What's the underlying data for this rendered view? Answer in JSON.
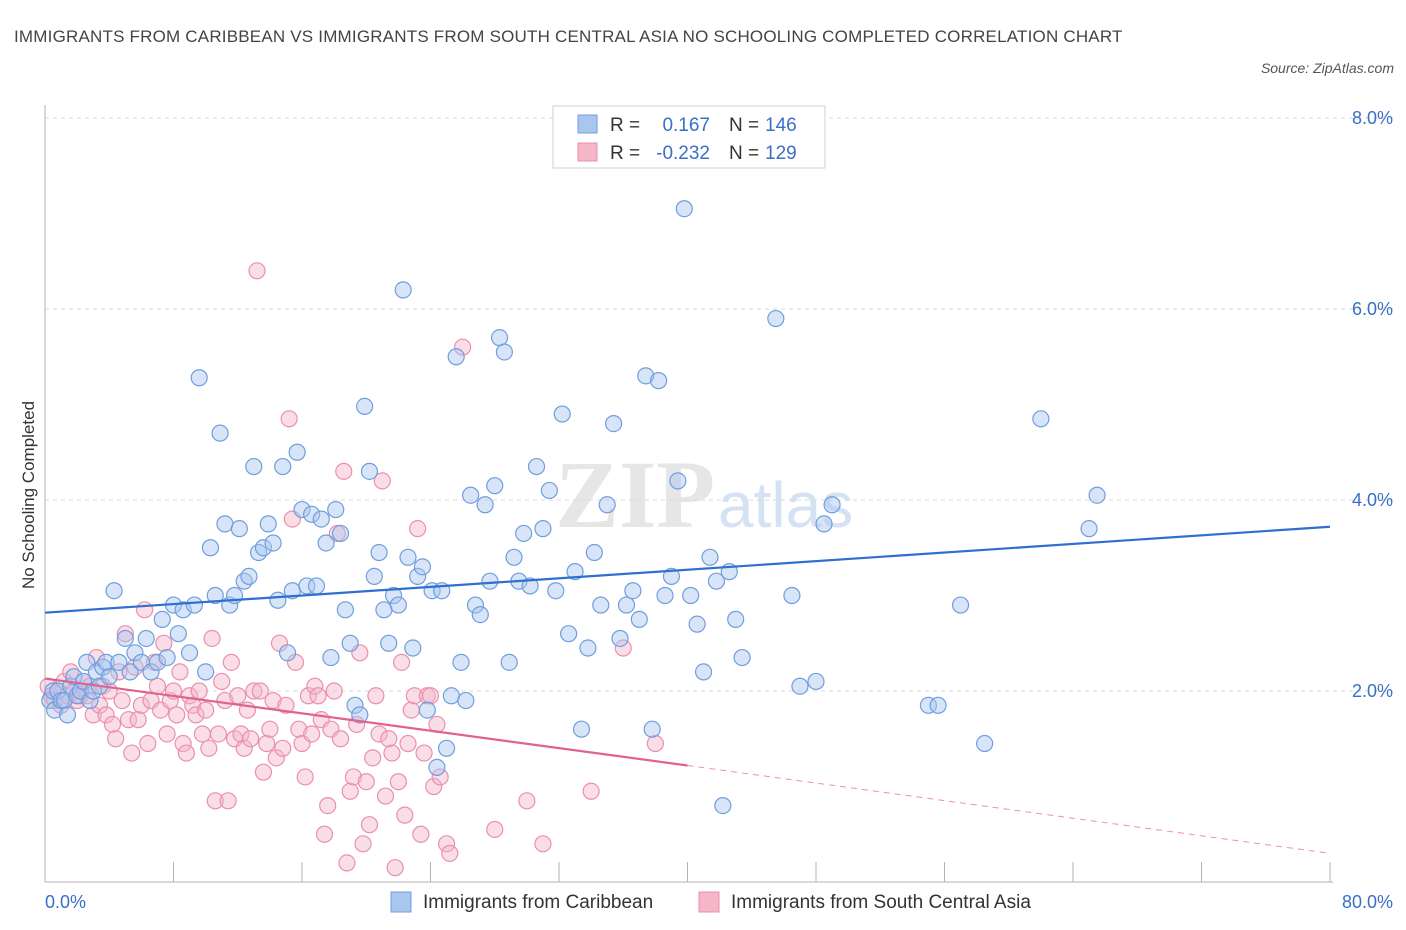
{
  "header": {
    "title": "IMMIGRANTS FROM CARIBBEAN VS IMMIGRANTS FROM SOUTH CENTRAL ASIA NO SCHOOLING COMPLETED CORRELATION CHART",
    "source": "Source: ZipAtlas.com"
  },
  "watermark": {
    "zip": "ZIP",
    "atlas": "atlas"
  },
  "legend_box": {
    "rows": [
      {
        "r_label": "R =",
        "r_value": "0.167",
        "n_label": "N =",
        "n_value": "146"
      },
      {
        "r_label": "R =",
        "r_value": "-0.232",
        "n_label": "N =",
        "n_value": "129"
      }
    ]
  },
  "colors": {
    "blue_fill": "#a9c6ef",
    "blue_stroke": "#6f9ede",
    "blue_line": "#2f6fcf",
    "pink_fill": "#f5b6c9",
    "pink_stroke": "#ec8fab",
    "pink_line": "#e0638d",
    "grid": "#d9d9d9",
    "tick_text": "#3a6fc6"
  },
  "chart_data": {
    "type": "scatter",
    "title": "IMMIGRANTS FROM CARIBBEAN VS IMMIGRANTS FROM SOUTH CENTRAL ASIA NO SCHOOLING COMPLETED CORRELATION CHART",
    "xlabel": "",
    "ylabel": "No Schooling Completed",
    "xlim": [
      0,
      80
    ],
    "ylim": [
      0,
      8.0
    ],
    "x_tick_labels": [
      "0.0%",
      "80.0%"
    ],
    "y_ticks": [
      2.0,
      4.0,
      6.0,
      8.0
    ],
    "y_tick_labels": [
      "2.0%",
      "4.0%",
      "6.0%",
      "8.0%"
    ],
    "grid": true,
    "series": [
      {
        "name": "Immigrants from Caribbean",
        "color": "#a9c6ef",
        "R": 0.167,
        "N": 146,
        "trend": {
          "x": [
            0,
            80
          ],
          "y": [
            2.82,
            3.72
          ]
        },
        "points": [
          [
            0.3,
            1.9
          ],
          [
            0.5,
            2.0
          ],
          [
            0.6,
            1.8
          ],
          [
            0.8,
            2.0
          ],
          [
            1.0,
            1.9
          ],
          [
            1.2,
            1.9
          ],
          [
            1.4,
            1.75
          ],
          [
            1.6,
            2.05
          ],
          [
            1.8,
            2.15
          ],
          [
            2.0,
            1.95
          ],
          [
            2.2,
            2.0
          ],
          [
            2.4,
            2.1
          ],
          [
            2.6,
            2.3
          ],
          [
            2.8,
            1.9
          ],
          [
            3.0,
            2.0
          ],
          [
            3.2,
            2.2
          ],
          [
            3.4,
            2.05
          ],
          [
            3.6,
            2.25
          ],
          [
            3.8,
            2.3
          ],
          [
            4.0,
            2.15
          ],
          [
            4.3,
            3.05
          ],
          [
            4.6,
            2.3
          ],
          [
            5.0,
            2.55
          ],
          [
            5.3,
            2.2
          ],
          [
            5.6,
            2.4
          ],
          [
            6.0,
            2.3
          ],
          [
            6.3,
            2.55
          ],
          [
            6.6,
            2.2
          ],
          [
            7.0,
            2.3
          ],
          [
            7.3,
            2.75
          ],
          [
            7.6,
            2.35
          ],
          [
            8.0,
            2.9
          ],
          [
            8.3,
            2.6
          ],
          [
            8.6,
            2.85
          ],
          [
            9.0,
            2.4
          ],
          [
            9.3,
            2.9
          ],
          [
            9.6,
            5.28
          ],
          [
            10.0,
            2.2
          ],
          [
            10.3,
            3.5
          ],
          [
            10.6,
            3.0
          ],
          [
            10.9,
            4.7
          ],
          [
            11.2,
            3.75
          ],
          [
            11.5,
            2.9
          ],
          [
            11.8,
            3.0
          ],
          [
            12.1,
            3.7
          ],
          [
            12.4,
            3.15
          ],
          [
            12.7,
            3.2
          ],
          [
            13.0,
            4.35
          ],
          [
            13.3,
            3.45
          ],
          [
            13.6,
            3.5
          ],
          [
            13.9,
            3.75
          ],
          [
            14.2,
            3.55
          ],
          [
            14.5,
            2.95
          ],
          [
            14.8,
            4.35
          ],
          [
            15.1,
            2.4
          ],
          [
            15.4,
            3.05
          ],
          [
            15.7,
            4.5
          ],
          [
            16.0,
            3.9
          ],
          [
            16.3,
            3.1
          ],
          [
            16.6,
            3.85
          ],
          [
            16.9,
            3.1
          ],
          [
            17.2,
            3.8
          ],
          [
            17.5,
            3.55
          ],
          [
            17.8,
            2.35
          ],
          [
            18.1,
            3.9
          ],
          [
            18.4,
            3.65
          ],
          [
            18.7,
            2.85
          ],
          [
            19.0,
            2.5
          ],
          [
            19.3,
            1.85
          ],
          [
            19.6,
            1.75
          ],
          [
            19.9,
            4.98
          ],
          [
            20.2,
            4.3
          ],
          [
            20.5,
            3.2
          ],
          [
            20.8,
            3.45
          ],
          [
            21.1,
            2.85
          ],
          [
            21.4,
            2.5
          ],
          [
            21.7,
            3.0
          ],
          [
            22.0,
            2.9
          ],
          [
            22.3,
            6.2
          ],
          [
            22.6,
            3.4
          ],
          [
            22.9,
            2.45
          ],
          [
            23.2,
            3.2
          ],
          [
            23.5,
            3.3
          ],
          [
            23.8,
            1.8
          ],
          [
            24.1,
            3.05
          ],
          [
            24.4,
            1.2
          ],
          [
            24.7,
            3.05
          ],
          [
            25.0,
            1.4
          ],
          [
            25.3,
            1.95
          ],
          [
            25.6,
            5.5
          ],
          [
            25.9,
            2.3
          ],
          [
            26.2,
            1.9
          ],
          [
            26.5,
            4.05
          ],
          [
            26.8,
            2.9
          ],
          [
            27.1,
            2.8
          ],
          [
            27.4,
            3.95
          ],
          [
            27.7,
            3.15
          ],
          [
            28.0,
            4.15
          ],
          [
            28.3,
            5.7
          ],
          [
            28.6,
            5.55
          ],
          [
            28.9,
            2.3
          ],
          [
            29.2,
            3.4
          ],
          [
            29.5,
            3.15
          ],
          [
            29.8,
            3.65
          ],
          [
            30.2,
            3.1
          ],
          [
            30.6,
            4.35
          ],
          [
            31.0,
            3.7
          ],
          [
            31.4,
            4.1
          ],
          [
            31.8,
            3.05
          ],
          [
            32.2,
            4.9
          ],
          [
            32.6,
            2.6
          ],
          [
            33.0,
            3.25
          ],
          [
            33.4,
            1.6
          ],
          [
            33.8,
            2.45
          ],
          [
            34.2,
            3.45
          ],
          [
            34.6,
            2.9
          ],
          [
            35.0,
            3.95
          ],
          [
            35.4,
            4.8
          ],
          [
            35.8,
            2.55
          ],
          [
            36.2,
            2.9
          ],
          [
            36.6,
            3.05
          ],
          [
            37.0,
            2.75
          ],
          [
            37.4,
            5.3
          ],
          [
            37.8,
            1.6
          ],
          [
            38.2,
            5.25
          ],
          [
            38.6,
            3.0
          ],
          [
            39.0,
            3.2
          ],
          [
            39.4,
            4.2
          ],
          [
            39.8,
            7.05
          ],
          [
            40.2,
            3.0
          ],
          [
            40.6,
            2.7
          ],
          [
            41.0,
            2.2
          ],
          [
            41.4,
            3.4
          ],
          [
            41.8,
            3.15
          ],
          [
            42.2,
            0.8
          ],
          [
            42.6,
            3.25
          ],
          [
            43.0,
            2.75
          ],
          [
            43.4,
            2.35
          ],
          [
            45.5,
            5.9
          ],
          [
            46.5,
            3.0
          ],
          [
            47.0,
            2.05
          ],
          [
            48.0,
            2.1
          ],
          [
            48.5,
            3.75
          ],
          [
            49.0,
            3.95
          ],
          [
            55.0,
            1.85
          ],
          [
            55.6,
            1.85
          ],
          [
            57.0,
            2.9
          ],
          [
            58.5,
            1.45
          ],
          [
            62.0,
            4.85
          ],
          [
            65.0,
            3.7
          ],
          [
            65.5,
            4.05
          ]
        ]
      },
      {
        "name": "Immigrants from South Central Asia",
        "color": "#f5b6c9",
        "R": -0.232,
        "N": 129,
        "trend": {
          "x": [
            0,
            40.0
          ],
          "y": [
            2.13,
            1.22
          ]
        },
        "trend_dashed": {
          "x": [
            40.0,
            80
          ],
          "y": [
            1.22,
            0.3
          ]
        },
        "points": [
          [
            0.2,
            2.05
          ],
          [
            0.4,
            1.95
          ],
          [
            0.6,
            1.9
          ],
          [
            0.8,
            2.0
          ],
          [
            1.0,
            1.85
          ],
          [
            1.2,
            2.1
          ],
          [
            1.4,
            1.95
          ],
          [
            1.6,
            2.2
          ],
          [
            1.8,
            2.0
          ],
          [
            2.0,
            1.9
          ],
          [
            2.2,
            1.95
          ],
          [
            2.4,
            2.1
          ],
          [
            2.6,
            1.95
          ],
          [
            2.8,
            2.05
          ],
          [
            3.0,
            1.75
          ],
          [
            3.2,
            2.35
          ],
          [
            3.4,
            1.85
          ],
          [
            3.6,
            2.05
          ],
          [
            3.8,
            1.75
          ],
          [
            4.0,
            2.0
          ],
          [
            4.2,
            1.65
          ],
          [
            4.4,
            1.5
          ],
          [
            4.6,
            2.2
          ],
          [
            4.8,
            1.9
          ],
          [
            5.0,
            2.6
          ],
          [
            5.2,
            1.7
          ],
          [
            5.4,
            1.35
          ],
          [
            5.6,
            2.25
          ],
          [
            5.8,
            1.7
          ],
          [
            6.0,
            1.85
          ],
          [
            6.2,
            2.85
          ],
          [
            6.4,
            1.45
          ],
          [
            6.6,
            1.9
          ],
          [
            6.8,
            2.3
          ],
          [
            7.0,
            2.05
          ],
          [
            7.2,
            1.8
          ],
          [
            7.4,
            2.5
          ],
          [
            7.6,
            1.55
          ],
          [
            7.8,
            1.9
          ],
          [
            8.0,
            2.0
          ],
          [
            8.2,
            1.75
          ],
          [
            8.4,
            2.2
          ],
          [
            8.6,
            1.45
          ],
          [
            8.8,
            1.35
          ],
          [
            9.0,
            1.95
          ],
          [
            9.2,
            1.85
          ],
          [
            9.4,
            1.75
          ],
          [
            9.6,
            2.0
          ],
          [
            9.8,
            1.55
          ],
          [
            10.0,
            1.8
          ],
          [
            10.2,
            1.4
          ],
          [
            10.4,
            2.55
          ],
          [
            10.6,
            0.85
          ],
          [
            10.8,
            1.55
          ],
          [
            11.0,
            2.1
          ],
          [
            11.2,
            1.9
          ],
          [
            11.4,
            0.85
          ],
          [
            11.6,
            2.3
          ],
          [
            11.8,
            1.5
          ],
          [
            12.0,
            1.95
          ],
          [
            12.2,
            1.55
          ],
          [
            12.4,
            1.4
          ],
          [
            12.6,
            1.8
          ],
          [
            12.8,
            1.5
          ],
          [
            13.0,
            2.0
          ],
          [
            13.2,
            6.4
          ],
          [
            13.4,
            2.0
          ],
          [
            13.6,
            1.15
          ],
          [
            13.8,
            1.45
          ],
          [
            14.0,
            1.6
          ],
          [
            14.2,
            1.9
          ],
          [
            14.4,
            1.3
          ],
          [
            14.6,
            2.5
          ],
          [
            14.8,
            1.4
          ],
          [
            15.0,
            1.85
          ],
          [
            15.2,
            4.85
          ],
          [
            15.4,
            3.8
          ],
          [
            15.6,
            2.3
          ],
          [
            15.8,
            1.6
          ],
          [
            16.0,
            1.45
          ],
          [
            16.2,
            1.1
          ],
          [
            16.4,
            1.95
          ],
          [
            16.6,
            1.55
          ],
          [
            16.8,
            2.05
          ],
          [
            17.0,
            1.95
          ],
          [
            17.2,
            1.7
          ],
          [
            17.4,
            0.5
          ],
          [
            17.6,
            0.8
          ],
          [
            17.8,
            1.6
          ],
          [
            18.0,
            2.0
          ],
          [
            18.2,
            3.65
          ],
          [
            18.4,
            1.5
          ],
          [
            18.6,
            4.3
          ],
          [
            18.8,
            0.2
          ],
          [
            19.0,
            0.95
          ],
          [
            19.2,
            1.1
          ],
          [
            19.4,
            1.65
          ],
          [
            19.6,
            2.4
          ],
          [
            19.8,
            0.4
          ],
          [
            20.0,
            1.05
          ],
          [
            20.2,
            0.6
          ],
          [
            20.4,
            1.3
          ],
          [
            20.6,
            1.95
          ],
          [
            20.8,
            1.55
          ],
          [
            21.0,
            4.2
          ],
          [
            21.2,
            0.9
          ],
          [
            21.4,
            1.5
          ],
          [
            21.6,
            1.35
          ],
          [
            21.8,
            0.15
          ],
          [
            22.0,
            1.05
          ],
          [
            22.2,
            2.3
          ],
          [
            22.4,
            0.7
          ],
          [
            22.6,
            1.45
          ],
          [
            22.8,
            1.8
          ],
          [
            23.0,
            1.95
          ],
          [
            23.2,
            3.7
          ],
          [
            23.4,
            0.5
          ],
          [
            23.6,
            1.35
          ],
          [
            23.8,
            1.95
          ],
          [
            24.0,
            1.95
          ],
          [
            24.2,
            1.0
          ],
          [
            24.4,
            1.65
          ],
          [
            24.6,
            1.1
          ],
          [
            25.0,
            0.4
          ],
          [
            25.2,
            0.3
          ],
          [
            26.0,
            5.6
          ],
          [
            28.0,
            0.55
          ],
          [
            30.0,
            0.85
          ],
          [
            31.0,
            0.4
          ],
          [
            34.0,
            0.95
          ],
          [
            36.0,
            2.45
          ],
          [
            38.0,
            1.45
          ]
        ]
      }
    ]
  },
  "bottom_legend": {
    "items": [
      {
        "label": "Immigrants from Caribbean"
      },
      {
        "label": "Immigrants from South Central Asia"
      }
    ]
  }
}
